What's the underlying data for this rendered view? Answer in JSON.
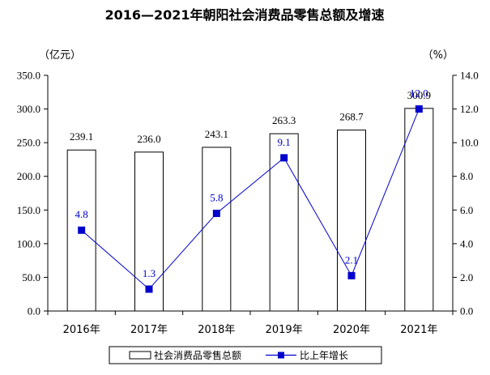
{
  "chart_data": {
    "type": "bar",
    "title": "2016—2021年朝阳社会消费品零售总额及增速",
    "left_unit": "（亿元）",
    "right_unit": "（%）",
    "categories": [
      "2016年",
      "2017年",
      "2018年",
      "2019年",
      "2020年",
      "2021年"
    ],
    "series": [
      {
        "name": "社会消费品零售总额",
        "type": "bar",
        "axis": "left",
        "values": [
          239.1,
          236.0,
          243.1,
          263.3,
          268.7,
          300.9
        ],
        "labels": [
          "239.1",
          "236.0",
          "243.1",
          "263.3",
          "268.7",
          "300.9"
        ]
      },
      {
        "name": "比上年增长",
        "type": "line",
        "axis": "right",
        "values": [
          4.8,
          1.3,
          5.8,
          9.1,
          2.1,
          12.0
        ],
        "labels": [
          "4.8",
          "1.3",
          "5.8",
          "9.1",
          "2.1",
          "12.0"
        ]
      }
    ],
    "left_axis": {
      "min": 0,
      "max": 350,
      "step": 50,
      "tick_labels": [
        "0.0",
        "50.0",
        "100.0",
        "150.0",
        "200.0",
        "250.0",
        "300.0",
        "350.0"
      ]
    },
    "right_axis": {
      "min": 0,
      "max": 14,
      "step": 2,
      "tick_labels": [
        "0.0",
        "2.0",
        "4.0",
        "6.0",
        "8.0",
        "10.0",
        "12.0",
        "14.0"
      ]
    },
    "grid": false,
    "legend_position": "bottom",
    "colors": {
      "bar_fill": "#ffffff",
      "bar_stroke": "#000000",
      "line": "#0000cc",
      "axis": "#000000"
    }
  }
}
